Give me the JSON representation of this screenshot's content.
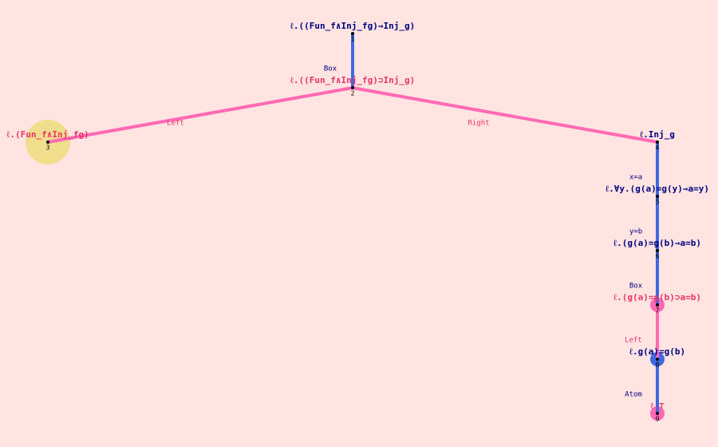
{
  "nodes": [
    {
      "id": "1",
      "label": "ℓ.((Fun_f∧Inj_fg)⇒Inj_g)"
    },
    {
      "id": "2",
      "label": "ℓ.((Fun_f∧Inj_fg)⊃Inj_g)"
    },
    {
      "id": "3",
      "label": "ℓ.(Fun_f∧Inj_fg)"
    },
    {
      "id": "4",
      "label": "ℓ.Inj_g"
    },
    {
      "id": "5",
      "label": "ℓ.∀y.(g(a)=g(y)⇒a=y)"
    },
    {
      "id": "6",
      "label": "ℓ.(g(a)=g(b)⇒a=b)"
    },
    {
      "id": "7",
      "label": "ℓ.(g(a)=g(b)⊃a=b)"
    },
    {
      "id": "8",
      "label": "ℓ.g(a)=g(b)"
    },
    {
      "id": "9",
      "label": "ℓ.⊤"
    }
  ],
  "edges": [
    {
      "label": "Box"
    },
    {
      "label": "Left"
    },
    {
      "label": "Right"
    },
    {
      "label": "x=a"
    },
    {
      "label": "y=b"
    },
    {
      "label": "Box"
    },
    {
      "label": "Left"
    },
    {
      "label": "Atom"
    }
  ]
}
